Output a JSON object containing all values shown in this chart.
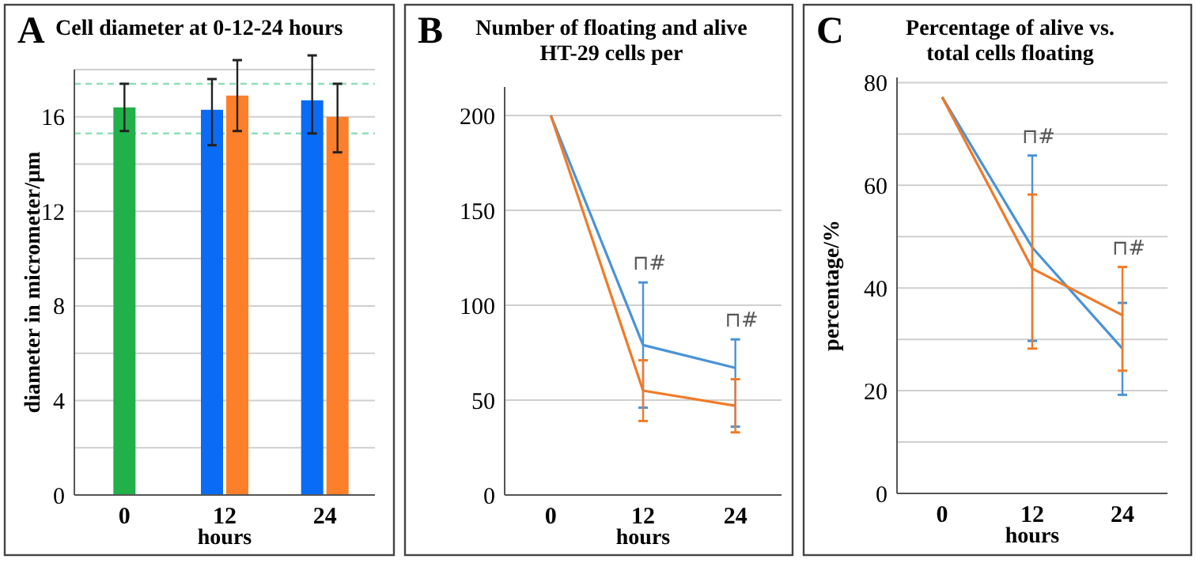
{
  "chart_data": [
    {
      "type": "bar",
      "title": "Cell diameter at 0-12-24 hours",
      "xlabel": "hours",
      "ylabel": "diameter in micrometer/µm",
      "annotations": [
        "A"
      ],
      "categories": [
        "0",
        "12",
        "24"
      ],
      "series": [
        {
          "color": "#22b04a",
          "values": [
            16.4,
            null,
            null
          ],
          "errors": [
            [
              15.4,
              17.4
            ],
            null,
            null
          ]
        },
        {
          "color": "#0a6cf5",
          "values": [
            null,
            16.3,
            16.7
          ],
          "errors": [
            null,
            [
              14.8,
              17.6
            ],
            [
              15.3,
              18.6
            ]
          ]
        },
        {
          "color": "#fe7f2a",
          "values": [
            null,
            16.9,
            16.0
          ],
          "errors": [
            null,
            [
              15.4,
              18.4
            ],
            [
              14.5,
              17.4
            ]
          ]
        }
      ],
      "ylim": [
        0,
        18
      ],
      "yticks": [
        0,
        {
          "value": 2,
          "label": null
        },
        4,
        {
          "value": 6,
          "label": null
        },
        8,
        {
          "value": 10,
          "label": null
        },
        12,
        {
          "value": 14,
          "label": null
        },
        16,
        {
          "value": 18,
          "label": null
        }
      ],
      "grid": "y",
      "ref_lines": [
        {
          "axis": "y",
          "value": 17.4,
          "color": "#8fe0b8",
          "line_style": "dashed"
        },
        {
          "axis": "y",
          "value": 15.3,
          "color": "#8fe0b8",
          "line_style": "dashed"
        }
      ]
    },
    {
      "type": "line",
      "title": "Number of floating and alive\nHT-29 cells per",
      "xlabel": "hours",
      "categories": [
        "0",
        "12",
        "24"
      ],
      "annotations": [
        "B",
        "⊓#",
        "⊓#"
      ],
      "series": [
        {
          "color": "#4a93d6",
          "values": [
            200,
            79,
            67
          ],
          "errors": [
            null,
            [
              46,
              112
            ],
            [
              36,
              82
            ]
          ]
        },
        {
          "color": "#f07a28",
          "values": [
            200,
            55,
            47
          ],
          "errors": [
            null,
            [
              39,
              71
            ],
            [
              33,
              61
            ]
          ]
        }
      ],
      "ylim": [
        0,
        215
      ],
      "yticks": [
        0,
        50,
        100,
        150,
        200
      ],
      "grid": "y",
      "line_style": "solid",
      "marker": "none"
    },
    {
      "type": "line",
      "title": "Percentage of alive vs.\ntotal cells floating",
      "xlabel": "hours",
      "ylabel": "percentage/%",
      "categories": [
        "0",
        "12",
        "24"
      ],
      "annotations": [
        "C",
        "⊓#",
        "⊓#"
      ],
      "series": [
        {
          "color": "#4a93d6",
          "values": [
            77.2,
            47.9,
            28.2
          ],
          "errors": [
            null,
            [
              29.7,
              65.8
            ],
            [
              19.2,
              37.1
            ]
          ]
        },
        {
          "color": "#f07a28",
          "values": [
            77.2,
            43.8,
            34.7
          ],
          "errors": [
            null,
            [
              28.2,
              58.2
            ],
            [
              23.9,
              44.1
            ]
          ]
        }
      ],
      "ylim": [
        0,
        81
      ],
      "yticks": [
        0,
        {
          "value": 10,
          "label": null
        },
        20,
        {
          "value": 30,
          "label": null
        },
        40,
        {
          "value": 50,
          "label": null
        },
        60,
        {
          "value": 70,
          "label": null
        },
        80
      ],
      "grid": "y",
      "line_style": "solid",
      "marker": "none"
    }
  ]
}
